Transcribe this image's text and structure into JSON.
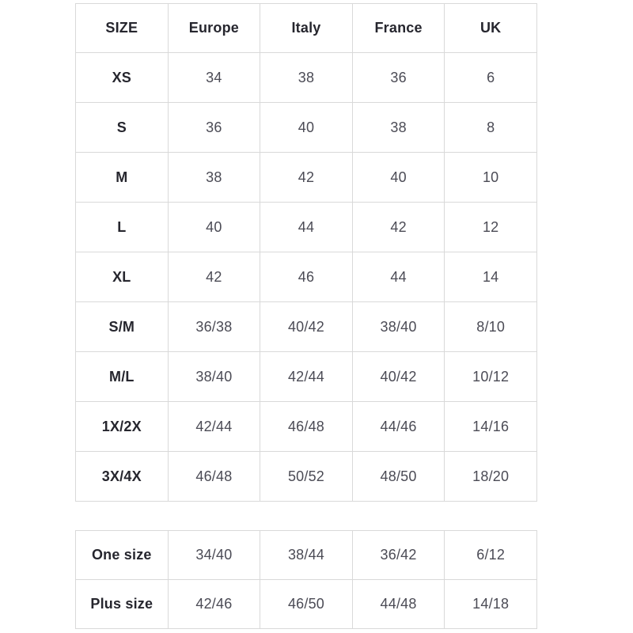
{
  "colors": {
    "background": "#ffffff",
    "border": "#d9d9d9",
    "header_text": "#26262e",
    "data_text": "#4b4b55"
  },
  "main_table": {
    "headers": [
      "SIZE",
      "Europe",
      "Italy",
      "France",
      "UK"
    ],
    "rows": [
      {
        "label": "XS",
        "europe": "34",
        "italy": "38",
        "france": "36",
        "uk": "6"
      },
      {
        "label": "S",
        "europe": "36",
        "italy": "40",
        "france": "38",
        "uk": "8"
      },
      {
        "label": "M",
        "europe": "38",
        "italy": "42",
        "france": "40",
        "uk": "10"
      },
      {
        "label": "L",
        "europe": "40",
        "italy": "44",
        "france": "42",
        "uk": "12"
      },
      {
        "label": "XL",
        "europe": "42",
        "italy": "46",
        "france": "44",
        "uk": "14"
      },
      {
        "label": "S/M",
        "europe": "36/38",
        "italy": "40/42",
        "france": "38/40",
        "uk": "8/10"
      },
      {
        "label": "M/L",
        "europe": "38/40",
        "italy": "42/44",
        "france": "40/42",
        "uk": "10/12"
      },
      {
        "label": "1X/2X",
        "europe": "42/44",
        "italy": "46/48",
        "france": "44/46",
        "uk": "14/16"
      },
      {
        "label": "3X/4X",
        "europe": "46/48",
        "italy": "50/52",
        "france": "48/50",
        "uk": "18/20"
      }
    ]
  },
  "secondary_table": {
    "rows": [
      {
        "label": "One size",
        "europe": "34/40",
        "italy": "38/44",
        "france": "36/42",
        "uk": "6/12"
      },
      {
        "label": "Plus size",
        "europe": "42/46",
        "italy": "46/50",
        "france": "44/48",
        "uk": "14/18"
      }
    ]
  }
}
